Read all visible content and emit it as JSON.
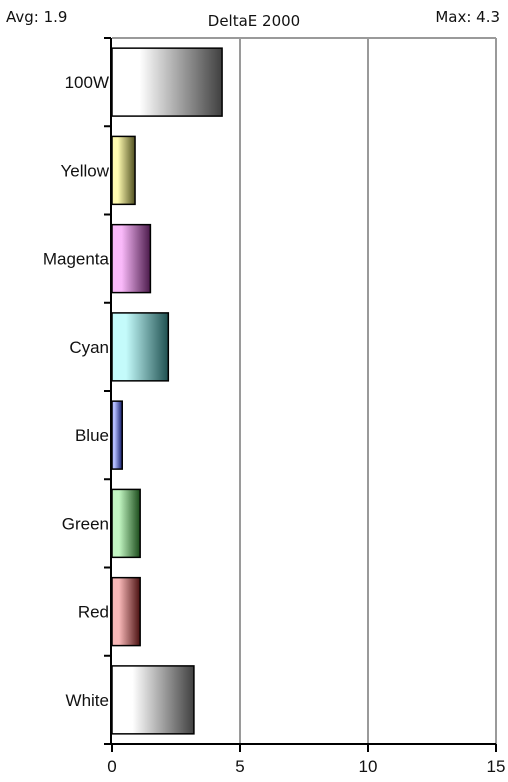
{
  "header": {
    "avg": "Avg: 1.9",
    "title": "DeltaE 2000",
    "max": "Max: 4.3"
  },
  "chart_data": {
    "type": "bar",
    "orientation": "horizontal",
    "title": "DeltaE 2000",
    "categories": [
      "100W",
      "Yellow",
      "Magenta",
      "Cyan",
      "Blue",
      "Green",
      "Red",
      "White"
    ],
    "values": [
      4.3,
      0.9,
      1.5,
      2.2,
      0.4,
      1.1,
      1.1,
      3.2
    ],
    "colors": [
      "#ffffff",
      "#fffbb0",
      "#f9b9f9",
      "#c4fbfb",
      "#b4bdff",
      "#c3f7c3",
      "#f8b8b8",
      "#ffffff"
    ],
    "dark_colors": [
      "#404040",
      "#505020",
      "#4a1a4a",
      "#1f5050",
      "#101a6a",
      "#1a4a1a",
      "#4a1010",
      "#404040"
    ],
    "xlim": [
      0,
      15
    ],
    "xticks": [
      0,
      5,
      10,
      15
    ],
    "grid": true,
    "xlabel": "",
    "ylabel": ""
  }
}
